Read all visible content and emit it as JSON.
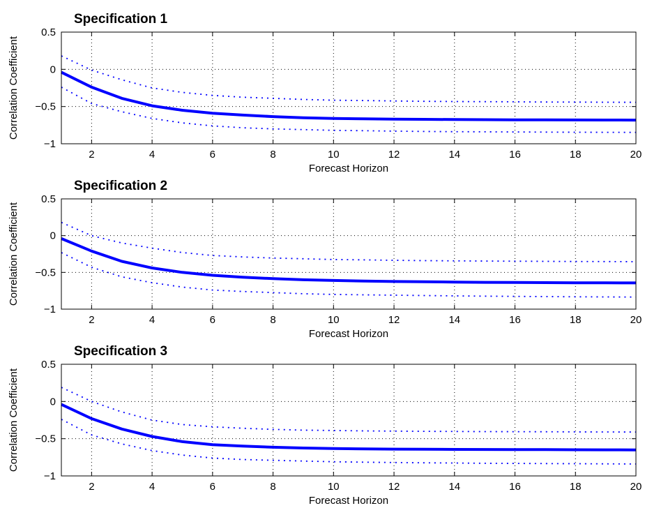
{
  "chart_data": [
    {
      "type": "line",
      "title": "Specification 1",
      "xlabel": "Forecast Horizon",
      "ylabel": "Correlation Coefficient",
      "xlim": [
        1,
        20
      ],
      "ylim": [
        -1,
        0.5
      ],
      "xticks": [
        2,
        4,
        6,
        8,
        10,
        12,
        14,
        16,
        18,
        20
      ],
      "yticks": [
        0.5,
        0,
        -0.5,
        -1
      ],
      "ytick_labels": [
        "0.5",
        "0",
        "−0.5",
        "−1"
      ],
      "grid": true,
      "x": [
        1,
        2,
        3,
        4,
        5,
        6,
        7,
        8,
        9,
        10,
        11,
        12,
        13,
        14,
        15,
        16,
        17,
        18,
        19,
        20
      ],
      "series": [
        {
          "style": "solid",
          "color": "#0000ff",
          "values": [
            -0.04,
            -0.24,
            -0.39,
            -0.49,
            -0.55,
            -0.59,
            -0.615,
            -0.635,
            -0.65,
            -0.66,
            -0.665,
            -0.67,
            -0.672,
            -0.675,
            -0.677,
            -0.678,
            -0.679,
            -0.68,
            -0.681,
            -0.682
          ]
        },
        {
          "style": "dotted",
          "color": "#0000ff",
          "values": [
            0.18,
            -0.01,
            -0.14,
            -0.25,
            -0.31,
            -0.35,
            -0.375,
            -0.39,
            -0.405,
            -0.415,
            -0.42,
            -0.425,
            -0.43,
            -0.433,
            -0.435,
            -0.437,
            -0.439,
            -0.44,
            -0.442,
            -0.443
          ]
        },
        {
          "style": "dotted",
          "color": "#0000ff",
          "values": [
            -0.24,
            -0.46,
            -0.57,
            -0.66,
            -0.72,
            -0.76,
            -0.785,
            -0.8,
            -0.81,
            -0.82,
            -0.825,
            -0.83,
            -0.835,
            -0.838,
            -0.84,
            -0.842,
            -0.843,
            -0.845,
            -0.846,
            -0.847
          ]
        }
      ]
    },
    {
      "type": "line",
      "title": "Specification 2",
      "xlabel": "Forecast Horizon",
      "ylabel": "Correlation Coefficient",
      "xlim": [
        1,
        20
      ],
      "ylim": [
        -1,
        0.5
      ],
      "xticks": [
        2,
        4,
        6,
        8,
        10,
        12,
        14,
        16,
        18,
        20
      ],
      "yticks": [
        0.5,
        0,
        -0.5,
        -1
      ],
      "ytick_labels": [
        "0.5",
        "0",
        "−0.5",
        "−1"
      ],
      "grid": true,
      "x": [
        1,
        2,
        3,
        4,
        5,
        6,
        7,
        8,
        9,
        10,
        11,
        12,
        13,
        14,
        15,
        16,
        17,
        18,
        19,
        20
      ],
      "series": [
        {
          "style": "solid",
          "color": "#0000ff",
          "values": [
            -0.04,
            -0.21,
            -0.35,
            -0.44,
            -0.5,
            -0.54,
            -0.565,
            -0.585,
            -0.6,
            -0.61,
            -0.618,
            -0.624,
            -0.628,
            -0.632,
            -0.635,
            -0.637,
            -0.639,
            -0.641,
            -0.642,
            -0.643
          ]
        },
        {
          "style": "dotted",
          "color": "#0000ff",
          "values": [
            0.18,
            0.0,
            -0.1,
            -0.17,
            -0.23,
            -0.27,
            -0.29,
            -0.305,
            -0.315,
            -0.325,
            -0.33,
            -0.335,
            -0.34,
            -0.343,
            -0.346,
            -0.348,
            -0.35,
            -0.352,
            -0.353,
            -0.354
          ]
        },
        {
          "style": "dotted",
          "color": "#0000ff",
          "values": [
            -0.23,
            -0.43,
            -0.56,
            -0.64,
            -0.7,
            -0.74,
            -0.76,
            -0.775,
            -0.79,
            -0.8,
            -0.805,
            -0.81,
            -0.815,
            -0.82,
            -0.823,
            -0.826,
            -0.829,
            -0.832,
            -0.834,
            -0.836
          ]
        }
      ]
    },
    {
      "type": "line",
      "title": "Specification 3",
      "xlabel": "Forecast Horizon",
      "ylabel": "Correlation Coefficient",
      "xlim": [
        1,
        20
      ],
      "ylim": [
        -1,
        0.5
      ],
      "xticks": [
        2,
        4,
        6,
        8,
        10,
        12,
        14,
        16,
        18,
        20
      ],
      "yticks": [
        0.5,
        0,
        -0.5,
        -1
      ],
      "ytick_labels": [
        "0.5",
        "0",
        "−0.5",
        "−1"
      ],
      "grid": true,
      "x": [
        1,
        2,
        3,
        4,
        5,
        6,
        7,
        8,
        9,
        10,
        11,
        12,
        13,
        14,
        15,
        16,
        17,
        18,
        19,
        20
      ],
      "series": [
        {
          "style": "solid",
          "color": "#0000ff",
          "values": [
            -0.04,
            -0.23,
            -0.37,
            -0.47,
            -0.54,
            -0.58,
            -0.6,
            -0.615,
            -0.625,
            -0.632,
            -0.637,
            -0.64,
            -0.642,
            -0.644,
            -0.645,
            -0.646,
            -0.647,
            -0.648,
            -0.649,
            -0.65
          ]
        },
        {
          "style": "dotted",
          "color": "#0000ff",
          "values": [
            0.19,
            0.0,
            -0.14,
            -0.25,
            -0.31,
            -0.34,
            -0.36,
            -0.375,
            -0.385,
            -0.39,
            -0.395,
            -0.398,
            -0.401,
            -0.403,
            -0.405,
            -0.406,
            -0.407,
            -0.408,
            -0.409,
            -0.41
          ]
        },
        {
          "style": "dotted",
          "color": "#0000ff",
          "values": [
            -0.24,
            -0.45,
            -0.57,
            -0.66,
            -0.72,
            -0.76,
            -0.78,
            -0.79,
            -0.8,
            -0.81,
            -0.815,
            -0.82,
            -0.824,
            -0.827,
            -0.83,
            -0.832,
            -0.834,
            -0.836,
            -0.838,
            -0.84
          ]
        }
      ]
    }
  ]
}
